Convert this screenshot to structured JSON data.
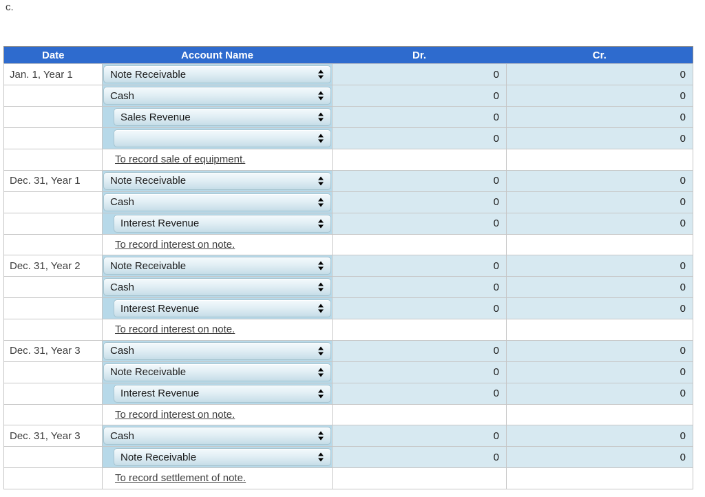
{
  "page": {
    "label": "c."
  },
  "colors": {
    "header_bg": "#2e6bce",
    "header_text": "#ffffff",
    "table_outer_border": "#8f8f8f",
    "grid_border": "#c6c6c6",
    "amount_cell_bg": "#d7e9f1",
    "account_cell_bg": "#b7d9e9",
    "select_top": "#f4fafc",
    "select_bottom": "#c6dde8",
    "select_border": "#a5c3cf",
    "text_primary": "#1a1a1a",
    "text_secondary": "#3d3d3d"
  },
  "table": {
    "headers": {
      "date": "Date",
      "account": "Account Name",
      "dr": "Dr.",
      "cr": "Cr."
    },
    "select_arrows_icon": "up-down-arrows",
    "rows": [
      {
        "kind": "select",
        "date": "Jan. 1, Year 1",
        "account": "Note Receivable",
        "indent": false,
        "dr": "0",
        "cr": "0"
      },
      {
        "kind": "select",
        "date": "",
        "account": "Cash",
        "indent": false,
        "dr": "0",
        "cr": "0"
      },
      {
        "kind": "select",
        "date": "",
        "account": "Sales Revenue",
        "indent": true,
        "dr": "0",
        "cr": "0"
      },
      {
        "kind": "select",
        "date": "",
        "account": "",
        "indent": true,
        "dr": "0",
        "cr": "0"
      },
      {
        "kind": "memo",
        "date": "",
        "memo": "To record sale of equipment."
      },
      {
        "kind": "select",
        "date": "Dec. 31, Year 1",
        "account": "Note Receivable",
        "indent": false,
        "dr": "0",
        "cr": "0"
      },
      {
        "kind": "select",
        "date": "",
        "account": "Cash",
        "indent": false,
        "dr": "0",
        "cr": "0"
      },
      {
        "kind": "select",
        "date": "",
        "account": "Interest Revenue",
        "indent": true,
        "dr": "0",
        "cr": "0"
      },
      {
        "kind": "memo",
        "date": "",
        "memo": "To record interest on note."
      },
      {
        "kind": "select",
        "date": "Dec. 31, Year 2",
        "account": "Note Receivable",
        "indent": false,
        "dr": "0",
        "cr": "0"
      },
      {
        "kind": "select",
        "date": "",
        "account": "Cash",
        "indent": false,
        "dr": "0",
        "cr": "0"
      },
      {
        "kind": "select",
        "date": "",
        "account": "Interest Revenue",
        "indent": true,
        "dr": "0",
        "cr": "0"
      },
      {
        "kind": "memo",
        "date": "",
        "memo": "To record interest on note."
      },
      {
        "kind": "select",
        "date": "Dec. 31, Year 3",
        "account": "Cash",
        "indent": false,
        "dr": "0",
        "cr": "0"
      },
      {
        "kind": "select",
        "date": "",
        "account": "Note Receivable",
        "indent": false,
        "dr": "0",
        "cr": "0"
      },
      {
        "kind": "select",
        "date": "",
        "account": "Interest Revenue",
        "indent": true,
        "dr": "0",
        "cr": "0"
      },
      {
        "kind": "memo",
        "date": "",
        "memo": "To record interest on note."
      },
      {
        "kind": "select",
        "date": "Dec. 31, Year 3",
        "account": "Cash",
        "indent": false,
        "dr": "0",
        "cr": "0"
      },
      {
        "kind": "select",
        "date": "",
        "account": "Note Receivable",
        "indent": true,
        "dr": "0",
        "cr": "0"
      },
      {
        "kind": "memo",
        "date": "",
        "memo": "To record settlement of note."
      }
    ]
  }
}
